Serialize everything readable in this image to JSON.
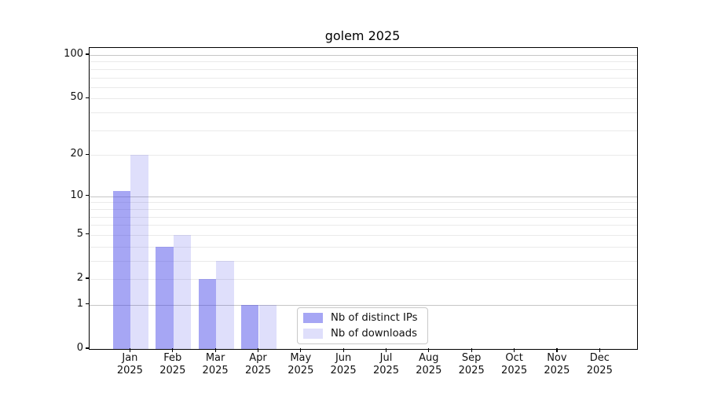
{
  "chart_data": {
    "type": "bar",
    "title": "golem 2025",
    "categories": [
      "Jan 2025",
      "Feb 2025",
      "Mar 2025",
      "Apr 2025",
      "May 2025",
      "Jun 2025",
      "Jul 2025",
      "Aug 2025",
      "Sep 2025",
      "Oct 2025",
      "Nov 2025",
      "Dec 2025"
    ],
    "series": [
      {
        "name": "Nb of distinct IPs",
        "color": "#a4a4f0",
        "fill": "rgba(60,60,232,0.46)",
        "values": [
          11,
          4,
          2,
          1,
          0,
          0,
          0,
          0,
          0,
          0,
          0,
          0
        ]
      },
      {
        "name": "Nb of downloads",
        "color": "#dcdcf9",
        "fill": "rgba(40,40,230,0.15)",
        "values": [
          20,
          5,
          3,
          1,
          0,
          0,
          0,
          0,
          0,
          0,
          0,
          0
        ]
      }
    ],
    "xlabel": "",
    "ylabel": "",
    "yscale": "log1p",
    "ylim": [
      0,
      112
    ],
    "y_tick_labels": [
      "0",
      "1",
      "2",
      "5",
      "10",
      "20",
      "50",
      "100"
    ],
    "y_major_gridlines": [
      1,
      10,
      100
    ],
    "y_minor_gridlines": [
      2,
      3,
      4,
      5,
      6,
      7,
      8,
      9,
      20,
      30,
      40,
      50,
      60,
      70,
      80,
      90
    ],
    "grid": true,
    "legend_position": "inside-bottom-center",
    "colors": {
      "grid_major": "#c6c6c6",
      "grid_minor": "#eaeaea",
      "axis": "#000000",
      "text": "#111111",
      "legend_border": "#c9c9c9"
    }
  }
}
